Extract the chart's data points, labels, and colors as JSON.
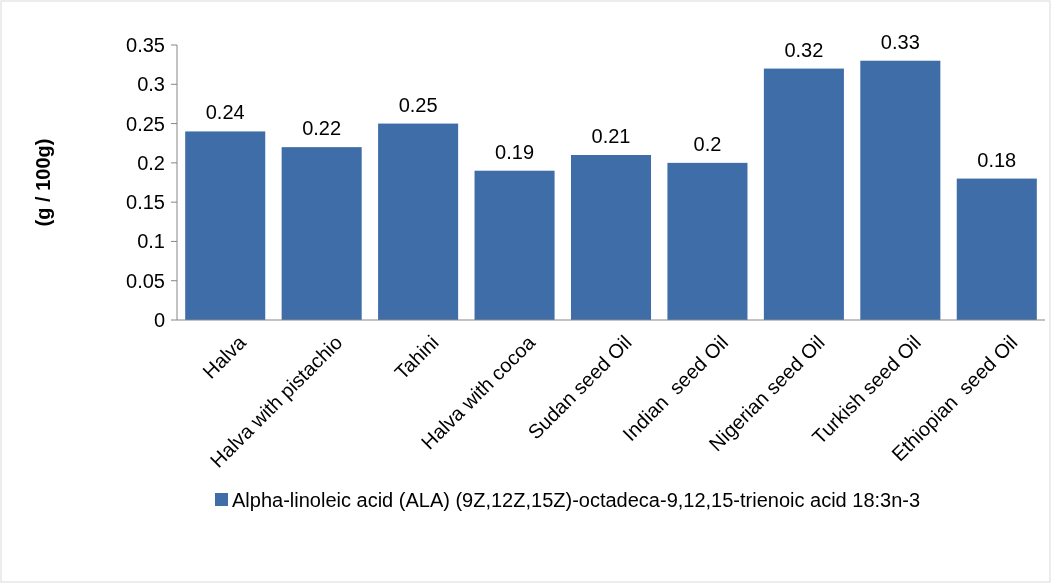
{
  "chart_data": {
    "type": "bar",
    "ylabel": "(g / 100g)",
    "categories": [
      "Halva",
      "Halva with pistachio",
      "Tahini",
      "Halva with cocoa",
      "Sudan seed Oil",
      "Indian  seed Oil",
      "Nigerian seed Oil",
      "Turkish seed Oil",
      "Ethiopian  seed Oil"
    ],
    "series": [
      {
        "name": "Alpha-linoleic acid (ALA) (9Z,12Z,15Z)-octadeca-9,12,15-trienoic acid 18:3n-3",
        "color": "#3e6da8",
        "values": [
          0.24,
          0.22,
          0.25,
          0.19,
          0.21,
          0.2,
          0.32,
          0.33,
          0.18
        ]
      }
    ],
    "ylim": [
      0,
      0.35
    ],
    "yticks": [
      0,
      0.05,
      0.1,
      0.15,
      0.2,
      0.25,
      0.3,
      0.35
    ],
    "grid": false,
    "legend": "bottom",
    "data_labels": true
  }
}
